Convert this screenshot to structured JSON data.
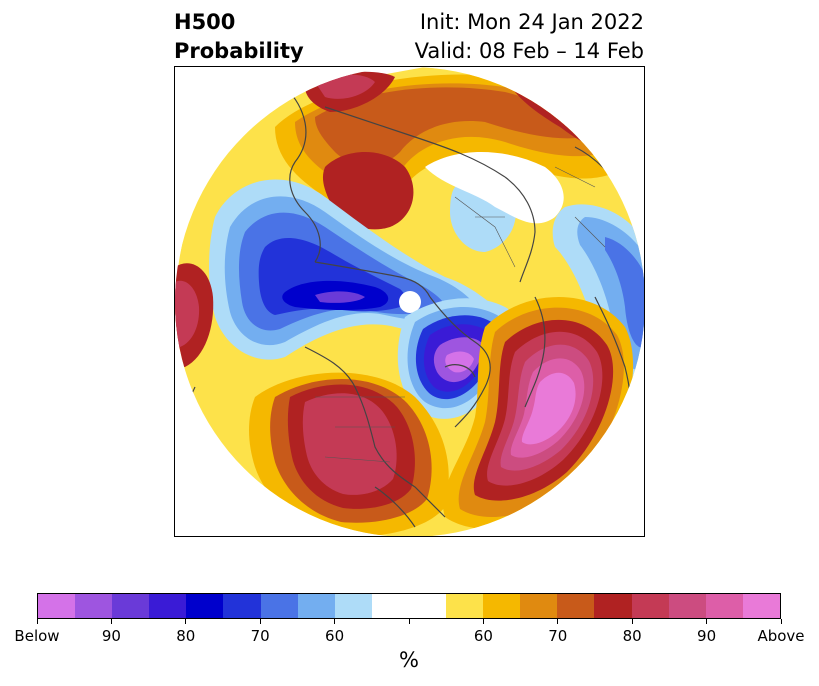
{
  "title": {
    "left_line1": "H500",
    "left_line2": "Probability",
    "right_line1": "Init: Mon 24 Jan 2022",
    "right_line2": "Valid: 08 Feb – 14 Feb"
  },
  "colorbar": {
    "label": "%",
    "colors": [
      "#d472e8",
      "#9e55e0",
      "#6a3ad8",
      "#3a1bd6",
      "#0000cc",
      "#2233d9",
      "#4a73e6",
      "#73aef0",
      "#aedcf8",
      "#ffffff",
      "#ffffff",
      "#fde24a",
      "#f5b800",
      "#e08a10",
      "#c85a1a",
      "#b02222",
      "#c43a55",
      "#cc4c80",
      "#dd5ea8",
      "#e97ad8"
    ],
    "tick_labels": [
      "Below",
      "90",
      "80",
      "70",
      "60",
      "",
      "60",
      "70",
      "80",
      "90",
      "Above"
    ]
  },
  "map": {
    "projection": "north-polar-stereographic",
    "background": "#ffffff",
    "coastline_color": "#444444"
  }
}
